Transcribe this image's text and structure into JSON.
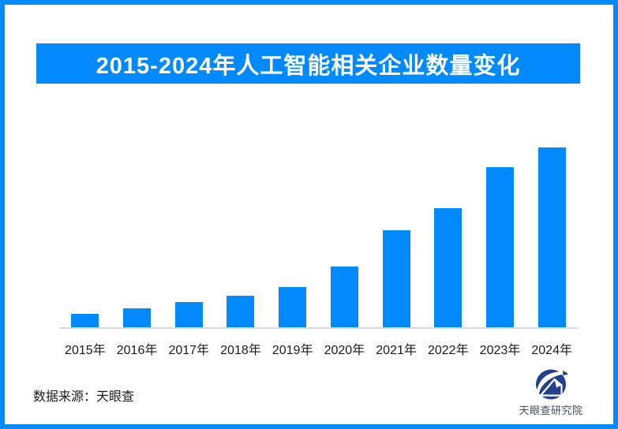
{
  "page": {
    "background": "#FFFFFF",
    "border_color": "#0289FC"
  },
  "header": {
    "title": "2015-2024年人工智能相关企业数量变化",
    "banner_color": "#0289FC",
    "title_color": "#FFFFFF"
  },
  "chart_data": {
    "type": "bar",
    "title": "2015-2024年人工智能相关企业数量变化",
    "categories": [
      "2015年",
      "2016年",
      "2017年",
      "2018年",
      "2019年",
      "2020年",
      "2021年",
      "2022年",
      "2023年",
      "2024年"
    ],
    "values_pct_of_max": [
      7.6,
      10.5,
      13.9,
      17.5,
      22.2,
      33.6,
      54.0,
      66.4,
      89.0,
      100
    ],
    "value_axis_labels_shown": false,
    "data_labels_shown": false,
    "gridlines": false,
    "legend": "none",
    "xlabel": "",
    "ylabel": "",
    "bar_color": "#0289FC",
    "baseline_color": "#D9D9D9",
    "category_label_color": "#1A1A1A"
  },
  "footer": {
    "source": "数据来源：天眼查",
    "logo_icon": "tianyancha-eye-icon",
    "logo_text": "天眼查研究院",
    "logo_color": "#21418C",
    "logo_text_color": "#3E4D61"
  }
}
